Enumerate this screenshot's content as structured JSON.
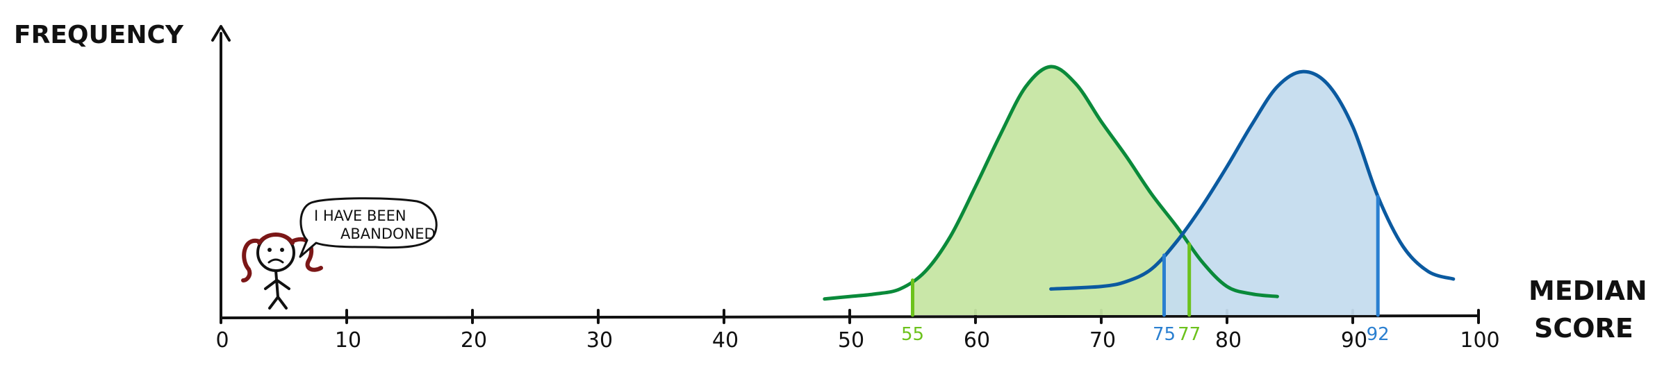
{
  "chart_data": {
    "type": "area",
    "title": "",
    "ylabel": "FREQUENCY",
    "xlabel_lines": [
      "MEDIAN",
      "SCORE"
    ],
    "xlim": [
      0,
      100
    ],
    "x_ticks": [
      0,
      10,
      20,
      30,
      40,
      50,
      60,
      70,
      80,
      90,
      100
    ],
    "x_tick_labels": [
      "0",
      "10",
      "20",
      "30",
      "40",
      "50",
      "60",
      "70",
      "80",
      "90",
      "100"
    ],
    "grid": false,
    "legend": "none",
    "series": [
      {
        "color": "#0a8a3a",
        "fill": "#c6e6a3",
        "x": [
          48,
          50,
          52,
          54,
          56,
          58,
          60,
          62,
          64,
          66,
          68,
          70,
          72,
          74,
          76,
          78,
          80,
          82,
          84
        ],
        "y": [
          0.07,
          0.08,
          0.09,
          0.11,
          0.18,
          0.32,
          0.52,
          0.73,
          0.92,
          1.0,
          0.93,
          0.78,
          0.64,
          0.49,
          0.36,
          0.22,
          0.12,
          0.09,
          0.08
        ],
        "shaded_from": 55,
        "shaded_to": 77,
        "markers": [
          55,
          77
        ]
      },
      {
        "color": "#0b5aa0",
        "fill": "#c5dcee",
        "x": [
          66,
          70,
          72,
          74,
          76,
          78,
          80,
          82,
          84,
          86,
          88,
          90,
          92,
          94,
          96,
          98
        ],
        "y": [
          0.11,
          0.12,
          0.14,
          0.19,
          0.3,
          0.44,
          0.6,
          0.77,
          0.92,
          0.98,
          0.93,
          0.76,
          0.48,
          0.28,
          0.18,
          0.15
        ],
        "shaded_from": 75,
        "shaded_to": 92,
        "markers": [
          75,
          92
        ]
      }
    ],
    "annotations": [
      {
        "text": "55",
        "x": 55,
        "color": "#6cc21c"
      },
      {
        "text": "75",
        "x": 75,
        "color": "#2a7fd0"
      },
      {
        "text": "77",
        "x": 77,
        "color": "#6cc21c"
      },
      {
        "text": "92",
        "x": 92,
        "color": "#2a7fd0"
      }
    ],
    "character": {
      "speech_lines": [
        "I HAVE BEEN",
        "ABANDONED"
      ],
      "hair_color": "#7b1717"
    }
  }
}
